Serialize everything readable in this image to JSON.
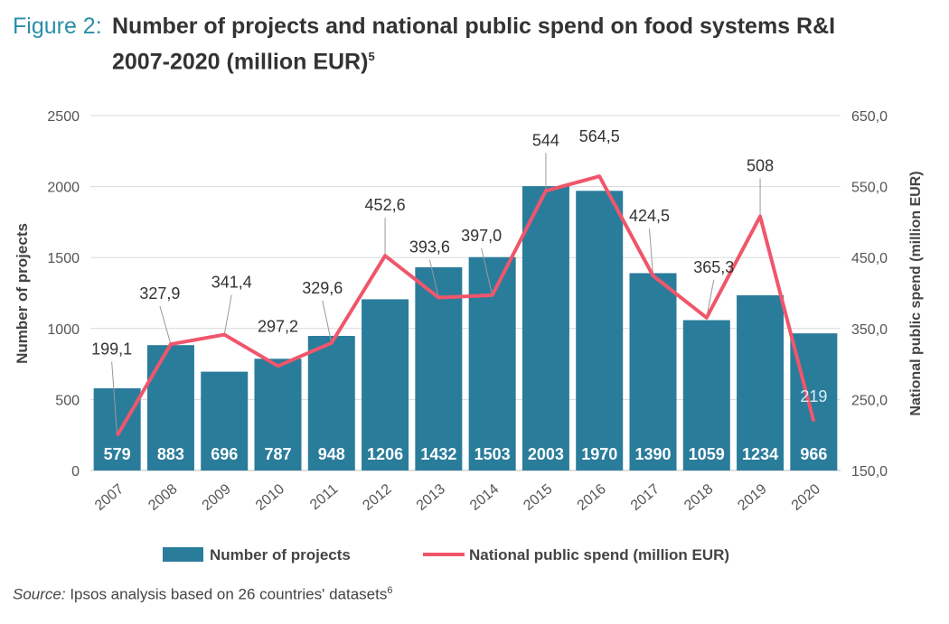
{
  "figure": {
    "label": "Figure 2:",
    "title_line1": "Number of projects and national public spend on food systems R&I",
    "title_line2": "2007-2020 (million EUR)",
    "title_footnote": "5"
  },
  "source": {
    "label": "Source:",
    "text": "Ipsos analysis based on 26 countries' datasets",
    "footnote": "6"
  },
  "colors": {
    "bars": "#2a7c9b",
    "line": "#f0566b",
    "grid": "#d9d9d9",
    "title_label": "#2a8fa8",
    "text": "#555555"
  },
  "chart_data": {
    "type": "bar",
    "categories": [
      "2007",
      "2008",
      "2009",
      "2010",
      "2011",
      "2012",
      "2013",
      "2014",
      "2015",
      "2016",
      "2017",
      "2018",
      "2019",
      "2020"
    ],
    "series": [
      {
        "name": "Number of projects",
        "type": "bar",
        "axis": "left",
        "values": [
          579,
          883,
          696,
          787,
          948,
          1206,
          1432,
          1503,
          2003,
          1970,
          1390,
          1059,
          1234,
          966
        ]
      },
      {
        "name": "National public spend (million EUR)",
        "type": "line",
        "axis": "right",
        "values": [
          199.1,
          327.9,
          341.4,
          297.2,
          329.6,
          452.6,
          393.6,
          397.0,
          544,
          564.5,
          424.5,
          365.3,
          508,
          219
        ],
        "labels": [
          "199,1",
          "327,9",
          "341,4",
          "297,2",
          "329,6",
          "452,6",
          "393,6",
          "397,0",
          "544",
          "564,5",
          "424,5",
          "365,3",
          "508",
          "219"
        ]
      }
    ],
    "ylabel": "Number of projects",
    "y2label": "National public spend (million EUR)",
    "ylim": [
      0,
      2500
    ],
    "y2lim": [
      150,
      650
    ],
    "yticks": [
      "0",
      "500",
      "1000",
      "1500",
      "2000",
      "2500"
    ],
    "y2ticks": [
      "150,0",
      "250,0",
      "350,0",
      "450,0",
      "550,0",
      "650,0"
    ],
    "grid": true,
    "legend_position": "bottom"
  }
}
